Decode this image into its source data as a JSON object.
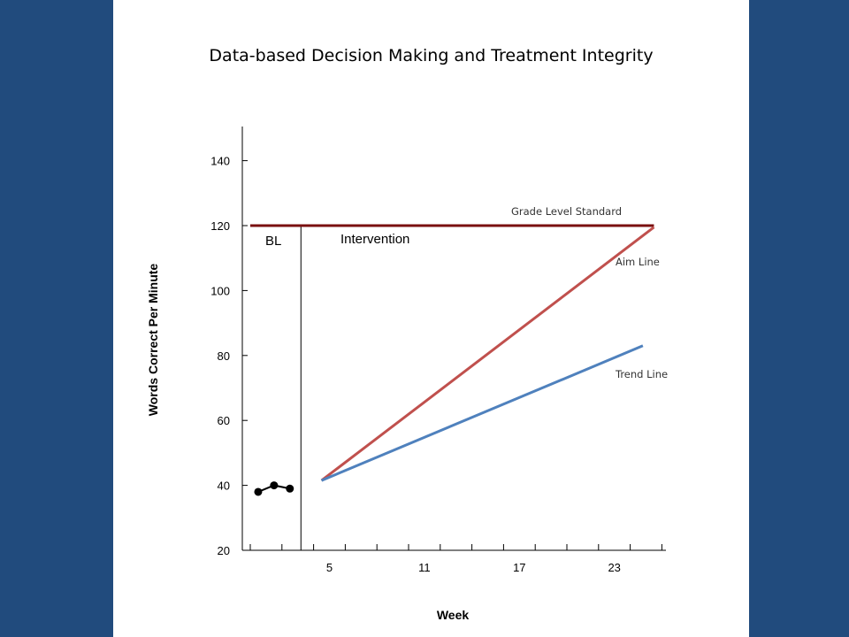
{
  "slide": {
    "title": "Data-based Decision Making and Treatment Integrity",
    "colors": {
      "frame": "#214b7d",
      "aim_line": "#c0504d",
      "trend_line": "#4f81bd",
      "standard_line": "#7a1010"
    }
  },
  "chart_data": {
    "type": "line",
    "xlabel": "Week",
    "ylabel": "Words Correct Per Minute",
    "xlim": [
      0,
      26
    ],
    "ylim": [
      20,
      150
    ],
    "x_ticks": [
      5,
      11,
      17,
      23
    ],
    "y_ticks": [
      20,
      40,
      60,
      80,
      100,
      120,
      140
    ],
    "grid": false,
    "phases": [
      {
        "label": "BL"
      },
      {
        "label": "Intervention"
      }
    ],
    "phase_change_x": 3.2,
    "reference_lines": [
      {
        "name": "Grade Level Standard",
        "y": 120,
        "x_start": 0,
        "x_end": 25.5
      }
    ],
    "series": [
      {
        "name": "Baseline",
        "x": [
          0.5,
          1.5,
          2.5
        ],
        "y": [
          38,
          40,
          39
        ]
      },
      {
        "name": "Aim Line",
        "x": [
          4.5,
          25.5
        ],
        "y": [
          41.5,
          119.5
        ]
      },
      {
        "name": "Trend Line",
        "x": [
          4.5,
          24.8
        ],
        "y": [
          41.5,
          83
        ]
      }
    ]
  }
}
